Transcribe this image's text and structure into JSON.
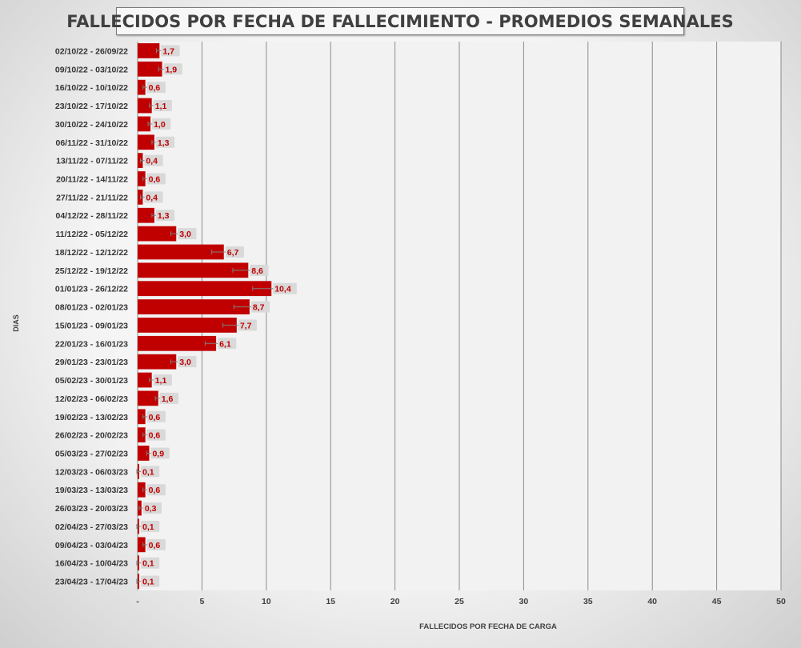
{
  "chart_data": {
    "type": "bar",
    "orientation": "horizontal",
    "title": "FALLECIDOS POR FECHA DE FALLECIMIENTO - PROMEDIOS SEMANALES",
    "xlabel": "FALLECIDOS POR FECHA DE CARGA",
    "ylabel": "DIAS",
    "xlim": [
      0,
      50
    ],
    "x_ticks": [
      "-",
      "5",
      "10",
      "15",
      "20",
      "25",
      "30",
      "35",
      "40",
      "45",
      "50"
    ],
    "grid": "vertical",
    "bar_color": "#c00000",
    "error_bars": true,
    "categories": [
      "02/10/22 - 26/09/22",
      "09/10/22 - 03/10/22",
      "16/10/22 - 10/10/22",
      "23/10/22 - 17/10/22",
      "30/10/22 - 24/10/22",
      "06/11/22 - 31/10/22",
      "13/11/22 - 07/11/22",
      "20/11/22 - 14/11/22",
      "27/11/22 - 21/11/22",
      "04/12/22 - 28/11/22",
      "11/12/22 - 05/12/22",
      "18/12/22 - 12/12/22",
      "25/12/22 - 19/12/22",
      "01/01/23 - 26/12/22",
      "08/01/23 - 02/01/23",
      "15/01/23 - 09/01/23",
      "22/01/23 - 16/01/23",
      "29/01/23 - 23/01/23",
      "05/02/23 - 30/01/23",
      "12/02/23 - 06/02/23",
      "19/02/23 - 13/02/23",
      "26/02/23 - 20/02/23",
      "05/03/23 - 27/02/23",
      "12/03/23 - 06/03/23",
      "19/03/23 - 13/03/23",
      "26/03/23 - 20/03/23",
      "02/04/23 - 27/03/23",
      "09/04/23 - 03/04/23",
      "16/04/23 - 10/04/23",
      "23/04/23 - 17/04/23"
    ],
    "values": [
      1.7,
      1.9,
      0.6,
      1.1,
      1.0,
      1.3,
      0.4,
      0.6,
      0.4,
      1.3,
      3.0,
      6.7,
      8.6,
      10.4,
      8.7,
      7.7,
      6.1,
      3.0,
      1.1,
      1.6,
      0.6,
      0.6,
      0.9,
      0.1,
      0.6,
      0.3,
      0.1,
      0.6,
      0.1,
      0.1
    ],
    "labels": [
      "1,7",
      "1,9",
      "0,6",
      "1,1",
      "1,0",
      "1,3",
      "0,4",
      "0,6",
      "0,4",
      "1,3",
      "3,0",
      "6,7",
      "8,6",
      "10,4",
      "8,7",
      "7,7",
      "6,1",
      "3,0",
      "1,1",
      "1,6",
      "0,6",
      "0,6",
      "0,9",
      "0,1",
      "0,6",
      "0,3",
      "0,1",
      "0,6",
      "0,1",
      "0,1"
    ]
  }
}
